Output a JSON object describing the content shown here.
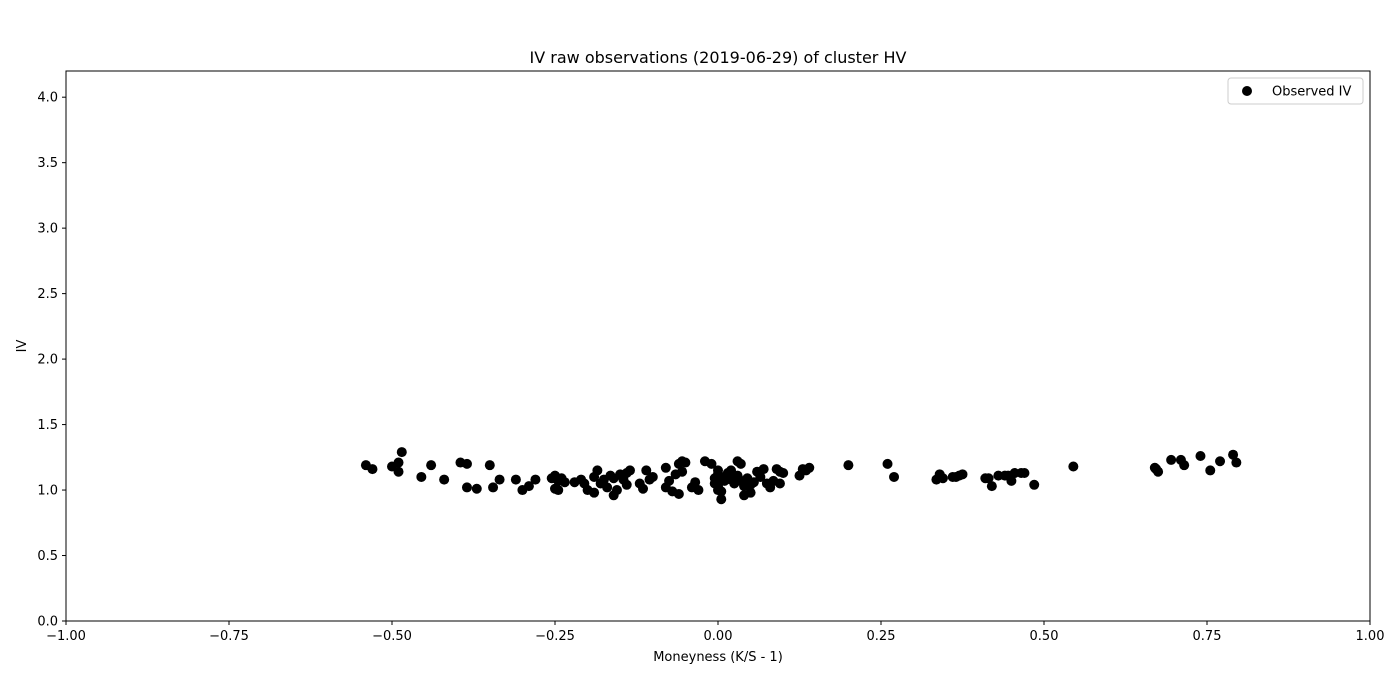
{
  "chart_data": {
    "type": "scatter",
    "title": "IV raw observations (2019-06-29) of cluster HV",
    "xlabel": "Moneyness (K/S - 1)",
    "ylabel": "IV",
    "xlim": [
      -1.0,
      1.0
    ],
    "ylim": [
      0.0,
      4.2
    ],
    "xticks": [
      -1.0,
      -0.75,
      -0.5,
      -0.25,
      0.0,
      0.25,
      0.5,
      0.75,
      1.0
    ],
    "xtick_labels": [
      "−1.00",
      "−0.75",
      "−0.50",
      "−0.25",
      "0.00",
      "0.25",
      "0.50",
      "0.75",
      "1.00"
    ],
    "yticks": [
      0.0,
      0.5,
      1.0,
      1.5,
      2.0,
      2.5,
      3.0,
      3.5,
      4.0
    ],
    "ytick_labels": [
      "0.0",
      "0.5",
      "1.0",
      "1.5",
      "2.0",
      "2.5",
      "3.0",
      "3.5",
      "4.0"
    ],
    "grid": false,
    "legend_position": "top-right",
    "marker_color": "#000000",
    "series": [
      {
        "name": "Observed IV",
        "points": [
          [
            -0.54,
            1.19
          ],
          [
            -0.53,
            1.16
          ],
          [
            -0.5,
            1.18
          ],
          [
            -0.49,
            1.21
          ],
          [
            -0.49,
            1.14
          ],
          [
            -0.485,
            1.29
          ],
          [
            -0.455,
            1.1
          ],
          [
            -0.44,
            1.19
          ],
          [
            -0.42,
            1.08
          ],
          [
            -0.395,
            1.21
          ],
          [
            -0.385,
            1.2
          ],
          [
            -0.385,
            1.02
          ],
          [
            -0.37,
            1.01
          ],
          [
            -0.35,
            1.19
          ],
          [
            -0.345,
            1.02
          ],
          [
            -0.335,
            1.08
          ],
          [
            -0.31,
            1.08
          ],
          [
            -0.3,
            1.0
          ],
          [
            -0.29,
            1.03
          ],
          [
            -0.28,
            1.08
          ],
          [
            -0.255,
            1.09
          ],
          [
            -0.25,
            1.11
          ],
          [
            -0.25,
            1.01
          ],
          [
            -0.245,
            1.0
          ],
          [
            -0.245,
            1.07
          ],
          [
            -0.24,
            1.09
          ],
          [
            -0.235,
            1.06
          ],
          [
            -0.22,
            1.06
          ],
          [
            -0.21,
            1.08
          ],
          [
            -0.205,
            1.05
          ],
          [
            -0.2,
            1.0
          ],
          [
            -0.19,
            0.98
          ],
          [
            -0.19,
            1.1
          ],
          [
            -0.185,
            1.15
          ],
          [
            -0.18,
            1.05
          ],
          [
            -0.175,
            1.08
          ],
          [
            -0.17,
            1.02
          ],
          [
            -0.165,
            1.11
          ],
          [
            -0.16,
            0.96
          ],
          [
            -0.16,
            1.09
          ],
          [
            -0.155,
            1.0
          ],
          [
            -0.15,
            1.12
          ],
          [
            -0.145,
            1.08
          ],
          [
            -0.14,
            1.13
          ],
          [
            -0.14,
            1.04
          ],
          [
            -0.135,
            1.15
          ],
          [
            -0.12,
            1.05
          ],
          [
            -0.115,
            1.01
          ],
          [
            -0.11,
            1.15
          ],
          [
            -0.105,
            1.08
          ],
          [
            -0.1,
            1.1
          ],
          [
            -0.08,
            1.17
          ],
          [
            -0.08,
            1.02
          ],
          [
            -0.075,
            1.07
          ],
          [
            -0.07,
            0.99
          ],
          [
            -0.065,
            1.12
          ],
          [
            -0.06,
            1.2
          ],
          [
            -0.06,
            0.97
          ],
          [
            -0.055,
            1.22
          ],
          [
            -0.055,
            1.14
          ],
          [
            -0.05,
            1.21
          ],
          [
            -0.04,
            1.02
          ],
          [
            -0.035,
            1.06
          ],
          [
            -0.03,
            1.0
          ],
          [
            -0.02,
            1.22
          ],
          [
            -0.01,
            1.2
          ],
          [
            -0.005,
            1.09
          ],
          [
            -0.005,
            1.05
          ],
          [
            0.0,
            1.15
          ],
          [
            0.0,
            1.12
          ],
          [
            0.0,
            1.08
          ],
          [
            0.0,
            1.03
          ],
          [
            0.0,
            1.0
          ],
          [
            0.005,
            0.93
          ],
          [
            0.005,
            0.99
          ],
          [
            0.01,
            1.07
          ],
          [
            0.01,
            1.1
          ],
          [
            0.015,
            1.13
          ],
          [
            0.02,
            1.15
          ],
          [
            0.02,
            1.08
          ],
          [
            0.025,
            1.05
          ],
          [
            0.03,
            1.22
          ],
          [
            0.03,
            1.11
          ],
          [
            0.035,
            1.2
          ],
          [
            0.035,
            1.07
          ],
          [
            0.04,
            1.03
          ],
          [
            0.04,
            0.96
          ],
          [
            0.045,
            1.09
          ],
          [
            0.05,
            0.98
          ],
          [
            0.05,
            1.04
          ],
          [
            0.055,
            1.06
          ],
          [
            0.06,
            1.14
          ],
          [
            0.065,
            1.1
          ],
          [
            0.07,
            1.16
          ],
          [
            0.075,
            1.05
          ],
          [
            0.08,
            1.02
          ],
          [
            0.085,
            1.07
          ],
          [
            0.09,
            1.16
          ],
          [
            0.095,
            1.14
          ],
          [
            0.095,
            1.05
          ],
          [
            0.1,
            1.13
          ],
          [
            0.125,
            1.11
          ],
          [
            0.13,
            1.16
          ],
          [
            0.135,
            1.15
          ],
          [
            0.14,
            1.17
          ],
          [
            0.2,
            1.19
          ],
          [
            0.26,
            1.2
          ],
          [
            0.27,
            1.1
          ],
          [
            0.335,
            1.08
          ],
          [
            0.34,
            1.12
          ],
          [
            0.345,
            1.09
          ],
          [
            0.36,
            1.1
          ],
          [
            0.365,
            1.1
          ],
          [
            0.37,
            1.11
          ],
          [
            0.375,
            1.12
          ],
          [
            0.41,
            1.09
          ],
          [
            0.415,
            1.09
          ],
          [
            0.42,
            1.03
          ],
          [
            0.43,
            1.11
          ],
          [
            0.44,
            1.11
          ],
          [
            0.445,
            1.11
          ],
          [
            0.45,
            1.07
          ],
          [
            0.455,
            1.13
          ],
          [
            0.465,
            1.13
          ],
          [
            0.47,
            1.13
          ],
          [
            0.485,
            1.04
          ],
          [
            0.545,
            1.18
          ],
          [
            0.67,
            1.17
          ],
          [
            0.672,
            1.16
          ],
          [
            0.675,
            1.14
          ],
          [
            0.695,
            1.23
          ],
          [
            0.71,
            1.23
          ],
          [
            0.715,
            1.19
          ],
          [
            0.74,
            1.26
          ],
          [
            0.755,
            1.15
          ],
          [
            0.77,
            1.22
          ],
          [
            0.79,
            1.27
          ],
          [
            0.795,
            1.21
          ]
        ]
      }
    ]
  }
}
